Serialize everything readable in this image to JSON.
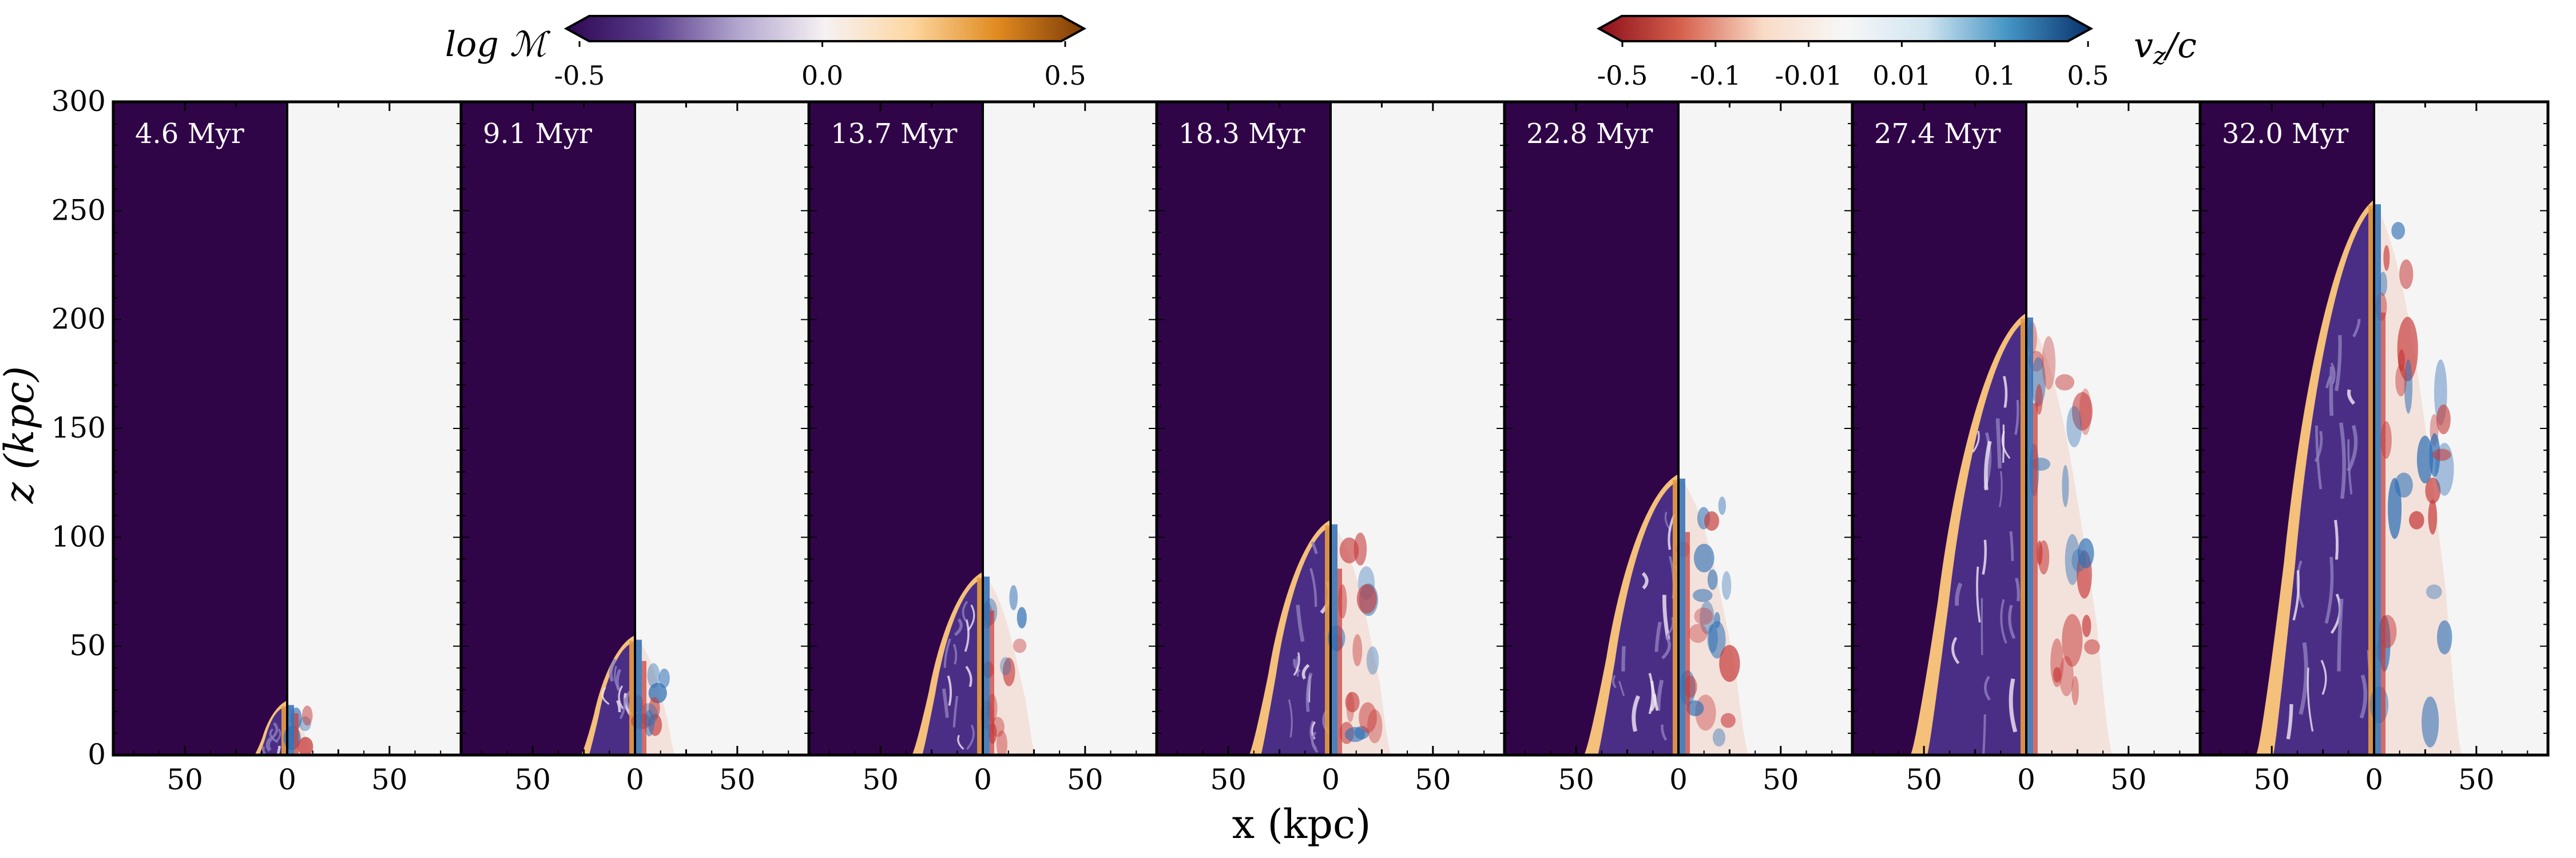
{
  "figure": {
    "x_axis_label": "x (kpc)",
    "y_axis_label": "z (kpc)",
    "y_ticks": [
      "0",
      "50",
      "100",
      "150",
      "200",
      "250",
      "300"
    ],
    "x_tick_labels": [
      "50",
      "0",
      "50"
    ],
    "panels": [
      {
        "time_label": "4.6 Myr",
        "jet_height_kpc": 24,
        "cocoon_halfwidth_kpc": 15
      },
      {
        "time_label": "9.1 Myr",
        "jet_height_kpc": 54,
        "cocoon_halfwidth_kpc": 25
      },
      {
        "time_label": "13.7 Myr",
        "jet_height_kpc": 83,
        "cocoon_halfwidth_kpc": 33
      },
      {
        "time_label": "18.3 Myr",
        "jet_height_kpc": 107,
        "cocoon_halfwidth_kpc": 38
      },
      {
        "time_label": "22.8 Myr",
        "jet_height_kpc": 128,
        "cocoon_halfwidth_kpc": 44
      },
      {
        "time_label": "27.4 Myr",
        "jet_height_kpc": 202,
        "cocoon_halfwidth_kpc": 54
      },
      {
        "time_label": "32.0 Myr",
        "jet_height_kpc": 254,
        "cocoon_halfwidth_kpc": 55
      }
    ]
  },
  "colorbars": {
    "mach": {
      "label": "log ℳ",
      "tick_labels": [
        "-0.5",
        "0.0",
        "0.5"
      ],
      "colors": [
        "#2e0854",
        "#5a3d8c",
        "#b3a7cf",
        "#f6f1f3",
        "#fdd7a1",
        "#e08a1f",
        "#7d3b07"
      ]
    },
    "velocity": {
      "label": "v_z / c",
      "label_main": "v",
      "label_sub": "z",
      "label_tail": "/c",
      "tick_labels": [
        "-0.5",
        "-0.1",
        "-0.01",
        "0.01",
        "0.1",
        "0.5"
      ],
      "colors": [
        "#8b0e1a",
        "#d6604d",
        "#f9dbc6",
        "#f7f7f7",
        "#d1e5f0",
        "#4393c3",
        "#08306b"
      ]
    }
  },
  "colors": {
    "background_left": "#300548",
    "background_right": "#f5f5f5",
    "shock_shell": "#f4c07a",
    "cocoon_purple": "#4a2e86",
    "lobe_blue": "#2f6fb4",
    "lobe_red": "#c63a3a"
  }
}
